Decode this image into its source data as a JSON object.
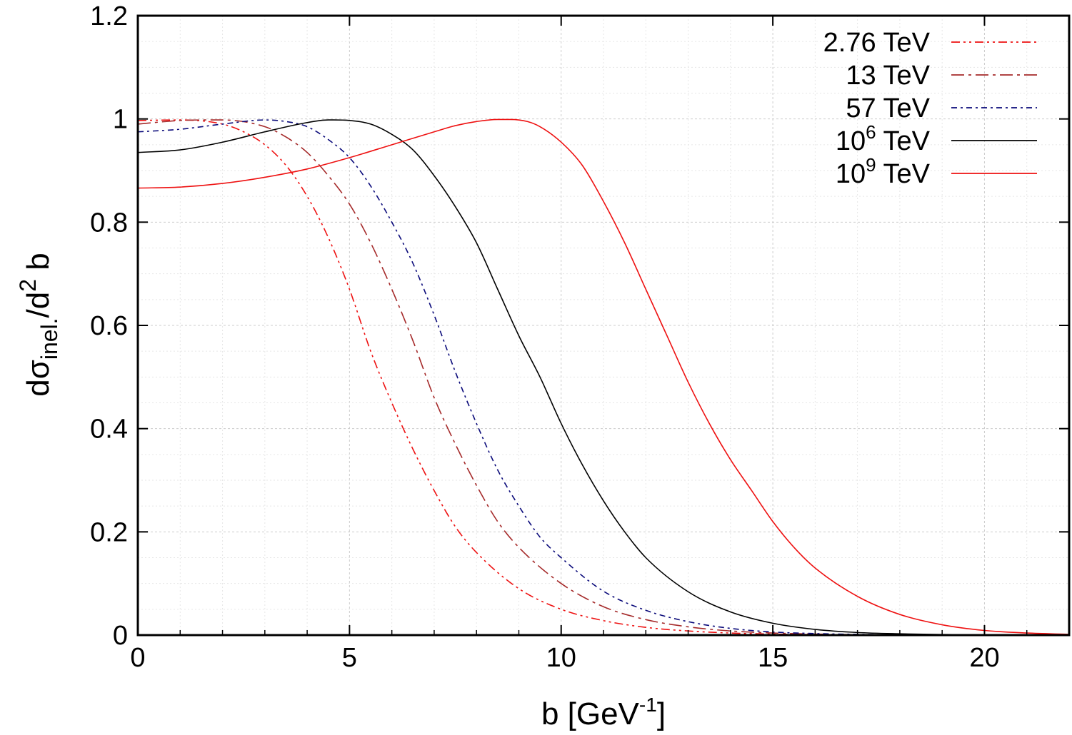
{
  "chart_data": {
    "type": "line",
    "xlabel": "b [GeV",
    "xlabel_sup": "-1",
    "xlabel_end": "]",
    "ylabel_main": "dσ",
    "ylabel_sub": "inel.",
    "ylabel_mid": "/d",
    "ylabel_sup": "2",
    "ylabel_end": " b",
    "xlim": [
      0,
      22
    ],
    "ylim": [
      0,
      1.2
    ],
    "xticks": [
      0,
      5,
      10,
      15,
      20
    ],
    "yticks": [
      0,
      0.2,
      0.4,
      0.6,
      0.8,
      1,
      1.2
    ],
    "xtick_labels": [
      "0",
      "5",
      "10",
      "15",
      "20"
    ],
    "ytick_labels": [
      "0",
      "0.2",
      "0.4",
      "0.6",
      "0.8",
      "1",
      "1.2"
    ],
    "grid": true,
    "legend_position": "top-right",
    "series": [
      {
        "name": "2.76 TeV",
        "label_base": "2.76",
        "label_sup": "",
        "label_unit": " TeV",
        "color": "#ee1111",
        "dash": "12 5 3 5 3 5",
        "x": [
          0,
          1,
          2,
          2.5,
          3,
          3.5,
          4,
          4.5,
          5,
          5.5,
          6,
          6.5,
          7,
          7.5,
          8,
          9,
          10,
          11,
          12,
          13,
          14,
          15,
          16,
          17,
          18
        ],
        "y": [
          0.997,
          0.998,
          0.99,
          0.975,
          0.95,
          0.91,
          0.85,
          0.77,
          0.67,
          0.55,
          0.45,
          0.36,
          0.28,
          0.21,
          0.16,
          0.09,
          0.05,
          0.028,
          0.015,
          0.008,
          0.004,
          0.002,
          0.001,
          0.0005,
          0.0002
        ]
      },
      {
        "name": "13 TeV",
        "label_base": "13",
        "label_sup": "",
        "label_unit": " TeV",
        "color": "#a52a2a",
        "dash": "18 6 4 6",
        "x": [
          0,
          1,
          2,
          3,
          3.5,
          4,
          4.5,
          5,
          5.5,
          6,
          6.5,
          7,
          7.5,
          8,
          8.5,
          9,
          10,
          11,
          12,
          13,
          14,
          15,
          16,
          17,
          18
        ],
        "y": [
          0.99,
          0.997,
          0.998,
          0.985,
          0.965,
          0.935,
          0.89,
          0.835,
          0.76,
          0.67,
          0.57,
          0.46,
          0.37,
          0.29,
          0.22,
          0.17,
          0.1,
          0.055,
          0.03,
          0.016,
          0.008,
          0.004,
          0.002,
          0.001,
          0.0005
        ]
      },
      {
        "name": "57 TeV",
        "label_base": "57",
        "label_sup": "",
        "label_unit": " TeV",
        "color": "#0a0a7a",
        "dash": "8 5 3 5",
        "x": [
          0,
          1,
          2,
          3,
          3.5,
          4,
          4.5,
          5,
          5.5,
          6,
          6.5,
          7,
          7.5,
          8,
          8.5,
          9,
          9.5,
          10,
          11,
          12,
          13,
          14,
          15,
          16,
          17,
          18
        ],
        "y": [
          0.975,
          0.98,
          0.99,
          0.998,
          0.995,
          0.985,
          0.96,
          0.925,
          0.87,
          0.8,
          0.72,
          0.62,
          0.51,
          0.41,
          0.32,
          0.25,
          0.19,
          0.15,
          0.085,
          0.048,
          0.026,
          0.013,
          0.006,
          0.003,
          0.0015,
          0.0007
        ]
      },
      {
        "name": "10^6 TeV",
        "label_base": "10",
        "label_sup": "6",
        "label_unit": " TeV",
        "color": "#000000",
        "dash": "",
        "x": [
          0,
          1,
          2,
          3,
          4,
          4.5,
          5,
          5.5,
          6,
          6.5,
          7,
          7.5,
          8,
          8.5,
          9,
          9.5,
          10,
          10.5,
          11,
          11.5,
          12,
          13,
          14,
          15,
          16,
          17,
          18,
          19,
          20
        ],
        "y": [
          0.935,
          0.94,
          0.955,
          0.975,
          0.993,
          0.998,
          0.997,
          0.99,
          0.97,
          0.94,
          0.89,
          0.83,
          0.76,
          0.67,
          0.58,
          0.5,
          0.41,
          0.33,
          0.26,
          0.2,
          0.15,
          0.084,
          0.045,
          0.023,
          0.011,
          0.005,
          0.0025,
          0.0012,
          0.0005
        ]
      },
      {
        "name": "10^9 TeV",
        "label_base": "10",
        "label_sup": "9",
        "label_unit": " TeV",
        "color": "#ee1111",
        "dash": "",
        "x": [
          0,
          1,
          2,
          3,
          4,
          5,
          6,
          7,
          7.5,
          8,
          8.5,
          8.8,
          9.2,
          9.5,
          10,
          10.5,
          11,
          11.5,
          12,
          12.5,
          13,
          13.5,
          14,
          14.5,
          15,
          15.5,
          16,
          17,
          18,
          19,
          20,
          21,
          22
        ],
        "y": [
          0.866,
          0.868,
          0.875,
          0.887,
          0.903,
          0.925,
          0.95,
          0.975,
          0.987,
          0.995,
          0.999,
          0.999,
          0.995,
          0.985,
          0.955,
          0.91,
          0.84,
          0.76,
          0.67,
          0.58,
          0.49,
          0.41,
          0.34,
          0.28,
          0.22,
          0.17,
          0.13,
          0.075,
          0.04,
          0.02,
          0.009,
          0.004,
          0.0015
        ]
      }
    ]
  }
}
